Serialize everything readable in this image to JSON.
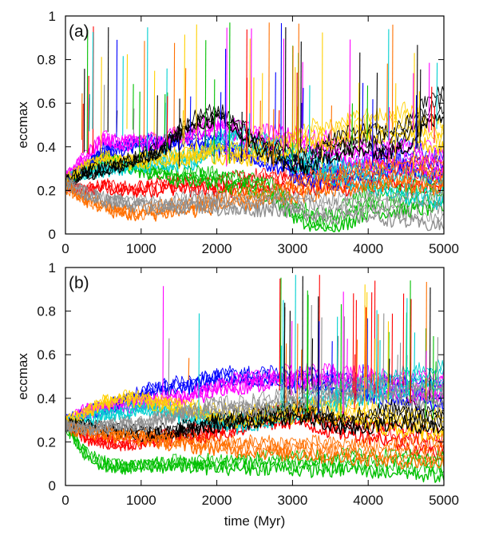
{
  "chart_data": [
    {
      "type": "line",
      "panel_label": "(a)",
      "xlabel": "",
      "ylabel": "eccmax",
      "xlim": [
        0,
        5000
      ],
      "ylim": [
        0,
        1
      ],
      "xticks": [
        "0",
        "1000",
        "2000",
        "3000",
        "4000",
        "5000"
      ],
      "yticks": [
        "0",
        "0.2",
        "0.4",
        "0.6",
        "0.8",
        "1"
      ],
      "grid": false,
      "legend": "none",
      "palette": [
        "#ff0000",
        "#00c000",
        "#0000ff",
        "#ff00ff",
        "#00d0d0",
        "#ffd000",
        "#000000",
        "#ff7000",
        "#909090"
      ],
      "series": [
        {
          "color": "#ff0000",
          "x": [
            0,
            250,
            500,
            750,
            1000,
            1250,
            1500,
            1750,
            2000,
            2250,
            2500,
            2750,
            3000,
            3250,
            3500,
            3750,
            4000,
            4250,
            4500,
            4750,
            5000
          ],
          "y": [
            0.23,
            0.2,
            0.22,
            0.2,
            0.21,
            0.22,
            0.23,
            0.22,
            0.22,
            0.23,
            0.24,
            0.24,
            0.25,
            0.24,
            0.26,
            0.25,
            0.27,
            0.27,
            0.26,
            0.27,
            0.26
          ]
        },
        {
          "color": "#00c000",
          "x": [
            0,
            250,
            500,
            750,
            1000,
            1250,
            1500,
            1750,
            2000,
            2250,
            2500,
            2750,
            3000,
            3250,
            3500,
            3750,
            4000,
            4250,
            4500,
            4750,
            5000
          ],
          "y": [
            0.25,
            0.3,
            0.35,
            0.32,
            0.3,
            0.28,
            0.26,
            0.27,
            0.25,
            0.24,
            0.22,
            0.2,
            0.12,
            0.06,
            0.05,
            0.1,
            0.15,
            0.15,
            0.16,
            0.17,
            0.18
          ]
        },
        {
          "color": "#0000ff",
          "x": [
            0,
            250,
            500,
            750,
            1000,
            1250,
            1500,
            1750,
            2000,
            2250,
            2500,
            2750,
            3000,
            3250,
            3500,
            3750,
            4000,
            4250,
            4500,
            4750,
            5000
          ],
          "y": [
            0.24,
            0.3,
            0.38,
            0.4,
            0.42,
            0.41,
            0.43,
            0.42,
            0.41,
            0.38,
            0.36,
            0.35,
            0.3,
            0.28,
            0.27,
            0.28,
            0.3,
            0.34,
            0.36,
            0.32,
            0.3
          ]
        },
        {
          "color": "#ff00ff",
          "x": [
            0,
            250,
            500,
            750,
            1000,
            1250,
            1500,
            1750,
            2000,
            2250,
            2500,
            2750,
            3000,
            3250,
            3500,
            3750,
            4000,
            4250,
            4500,
            4750,
            5000
          ],
          "y": [
            0.25,
            0.35,
            0.44,
            0.42,
            0.43,
            0.42,
            0.45,
            0.48,
            0.5,
            0.47,
            0.45,
            0.44,
            0.43,
            0.41,
            0.4,
            0.38,
            0.37,
            0.36,
            0.35,
            0.34,
            0.33
          ]
        },
        {
          "color": "#00d0d0",
          "x": [
            0,
            250,
            500,
            750,
            1000,
            1250,
            1500,
            1750,
            2000,
            2250,
            2500,
            2750,
            3000,
            3250,
            3500,
            3750,
            4000,
            4250,
            4500,
            4750,
            5000
          ],
          "y": [
            0.25,
            0.28,
            0.3,
            0.31,
            0.32,
            0.33,
            0.34,
            0.35,
            0.42,
            0.45,
            0.42,
            0.4,
            0.35,
            0.33,
            0.3,
            0.28,
            0.26,
            0.24,
            0.22,
            0.21,
            0.2
          ]
        },
        {
          "color": "#ffd000",
          "x": [
            0,
            250,
            500,
            750,
            1000,
            1250,
            1500,
            1750,
            2000,
            2250,
            2500,
            2750,
            3000,
            3250,
            3500,
            3750,
            4000,
            4250,
            4500,
            4750,
            5000
          ],
          "y": [
            0.24,
            0.3,
            0.35,
            0.33,
            0.34,
            0.36,
            0.35,
            0.37,
            0.38,
            0.36,
            0.37,
            0.38,
            0.42,
            0.46,
            0.45,
            0.48,
            0.5,
            0.49,
            0.52,
            0.47,
            0.45
          ]
        },
        {
          "color": "#000000",
          "x": [
            0,
            250,
            500,
            750,
            1000,
            1250,
            1500,
            1750,
            2000,
            2250,
            2500,
            2750,
            3000,
            3250,
            3500,
            3750,
            4000,
            4250,
            4500,
            4750,
            5000
          ],
          "y": [
            0.24,
            0.28,
            0.3,
            0.32,
            0.35,
            0.38,
            0.48,
            0.52,
            0.55,
            0.5,
            0.42,
            0.38,
            0.33,
            0.34,
            0.4,
            0.42,
            0.43,
            0.42,
            0.45,
            0.55,
            0.6
          ]
        },
        {
          "color": "#ff7000",
          "x": [
            0,
            250,
            500,
            750,
            1000,
            1250,
            1500,
            1750,
            2000,
            2250,
            2500,
            2750,
            3000,
            3250,
            3500,
            3750,
            4000,
            4250,
            4500,
            4750,
            5000
          ],
          "y": [
            0.22,
            0.16,
            0.13,
            0.1,
            0.1,
            0.11,
            0.12,
            0.13,
            0.15,
            0.16,
            0.17,
            0.18,
            0.2,
            0.22,
            0.24,
            0.25,
            0.27,
            0.28,
            0.28,
            0.27,
            0.27
          ]
        },
        {
          "color": "#909090",
          "x": [
            0,
            250,
            500,
            750,
            1000,
            1250,
            1500,
            1750,
            2000,
            2250,
            2500,
            2750,
            3000,
            3250,
            3500,
            3750,
            4000,
            4250,
            4500,
            4750,
            5000
          ],
          "y": [
            0.23,
            0.19,
            0.16,
            0.15,
            0.14,
            0.13,
            0.14,
            0.15,
            0.14,
            0.13,
            0.14,
            0.15,
            0.14,
            0.13,
            0.12,
            0.12,
            0.13,
            0.12,
            0.11,
            0.1,
            0.1
          ]
        }
      ]
    },
    {
      "type": "line",
      "panel_label": "(b)",
      "xlabel": "time (Myr)",
      "ylabel": "eccmax",
      "xlim": [
        0,
        5000
      ],
      "ylim": [
        0,
        1
      ],
      "xticks": [
        "0",
        "1000",
        "2000",
        "3000",
        "4000",
        "5000"
      ],
      "yticks": [
        "0",
        "0.2",
        "0.4",
        "0.6",
        "0.8",
        "1"
      ],
      "grid": false,
      "legend": "none",
      "palette": [
        "#ff0000",
        "#00c000",
        "#0000ff",
        "#ff00ff",
        "#00d0d0",
        "#ffd000",
        "#000000",
        "#ff7000",
        "#909090"
      ],
      "series": [
        {
          "color": "#ff0000",
          "x": [
            0,
            250,
            500,
            750,
            1000,
            1250,
            1500,
            1750,
            2000,
            2250,
            2500,
            2750,
            3000,
            3250,
            3500,
            3750,
            4000,
            4250,
            4500,
            4750,
            5000
          ],
          "y": [
            0.28,
            0.22,
            0.2,
            0.19,
            0.2,
            0.22,
            0.23,
            0.24,
            0.25,
            0.27,
            0.3,
            0.31,
            0.32,
            0.3,
            0.28,
            0.27,
            0.26,
            0.25,
            0.22,
            0.2,
            0.18
          ]
        },
        {
          "color": "#00c000",
          "x": [
            0,
            250,
            500,
            750,
            1000,
            1250,
            1500,
            1750,
            2000,
            2250,
            2500,
            2750,
            3000,
            3250,
            3500,
            3750,
            4000,
            4250,
            4500,
            4750,
            5000
          ],
          "y": [
            0.27,
            0.15,
            0.1,
            0.09,
            0.09,
            0.1,
            0.1,
            0.1,
            0.1,
            0.1,
            0.1,
            0.11,
            0.1,
            0.1,
            0.1,
            0.11,
            0.1,
            0.1,
            0.1,
            0.09,
            0.09
          ]
        },
        {
          "color": "#0000ff",
          "x": [
            0,
            250,
            500,
            750,
            1000,
            1250,
            1500,
            1750,
            2000,
            2250,
            2500,
            2750,
            3000,
            3250,
            3500,
            3750,
            4000,
            4250,
            4500,
            4750,
            5000
          ],
          "y": [
            0.29,
            0.33,
            0.36,
            0.38,
            0.42,
            0.45,
            0.46,
            0.47,
            0.49,
            0.5,
            0.49,
            0.5,
            0.48,
            0.49,
            0.47,
            0.46,
            0.45,
            0.44,
            0.43,
            0.42,
            0.42
          ]
        },
        {
          "color": "#ff00ff",
          "x": [
            0,
            250,
            500,
            750,
            1000,
            1250,
            1500,
            1750,
            2000,
            2250,
            2500,
            2750,
            3000,
            3250,
            3500,
            3750,
            4000,
            4250,
            4500,
            4750,
            5000
          ],
          "y": [
            0.28,
            0.34,
            0.36,
            0.37,
            0.38,
            0.39,
            0.4,
            0.42,
            0.45,
            0.47,
            0.48,
            0.49,
            0.5,
            0.5,
            0.5,
            0.49,
            0.48,
            0.47,
            0.45,
            0.45,
            0.46
          ]
        },
        {
          "color": "#00d0d0",
          "x": [
            0,
            250,
            500,
            750,
            1000,
            1250,
            1500,
            1750,
            2000,
            2250,
            2500,
            2750,
            3000,
            3250,
            3500,
            3750,
            4000,
            4250,
            4500,
            4750,
            5000
          ],
          "y": [
            0.28,
            0.3,
            0.32,
            0.34,
            0.35,
            0.35,
            0.33,
            0.32,
            0.3,
            0.29,
            0.3,
            0.32,
            0.35,
            0.38,
            0.4,
            0.42,
            0.44,
            0.46,
            0.48,
            0.5,
            0.5
          ]
        },
        {
          "color": "#ffd000",
          "x": [
            0,
            250,
            500,
            750,
            1000,
            1250,
            1500,
            1750,
            2000,
            2250,
            2500,
            2750,
            3000,
            3250,
            3500,
            3750,
            4000,
            4250,
            4500,
            4750,
            5000
          ],
          "y": [
            0.29,
            0.33,
            0.38,
            0.4,
            0.4,
            0.38,
            0.36,
            0.34,
            0.33,
            0.32,
            0.32,
            0.33,
            0.34,
            0.35,
            0.34,
            0.33,
            0.32,
            0.3,
            0.29,
            0.28,
            0.28
          ]
        },
        {
          "color": "#000000",
          "x": [
            0,
            250,
            500,
            750,
            1000,
            1250,
            1500,
            1750,
            2000,
            2250,
            2500,
            2750,
            3000,
            3250,
            3500,
            3750,
            4000,
            4250,
            4500,
            4750,
            5000
          ],
          "y": [
            0.28,
            0.27,
            0.26,
            0.25,
            0.24,
            0.24,
            0.25,
            0.27,
            0.29,
            0.3,
            0.31,
            0.33,
            0.34,
            0.33,
            0.3,
            0.29,
            0.3,
            0.32,
            0.33,
            0.31,
            0.3
          ]
        },
        {
          "color": "#ff7000",
          "x": [
            0,
            250,
            500,
            750,
            1000,
            1250,
            1500,
            1750,
            2000,
            2250,
            2500,
            2750,
            3000,
            3250,
            3500,
            3750,
            4000,
            4250,
            4500,
            4750,
            5000
          ],
          "y": [
            0.27,
            0.25,
            0.24,
            0.23,
            0.22,
            0.21,
            0.2,
            0.19,
            0.19,
            0.18,
            0.18,
            0.17,
            0.17,
            0.17,
            0.16,
            0.16,
            0.16,
            0.15,
            0.15,
            0.15,
            0.15
          ]
        },
        {
          "color": "#909090",
          "x": [
            0,
            250,
            500,
            750,
            1000,
            1250,
            1500,
            1750,
            2000,
            2250,
            2500,
            2750,
            3000,
            3250,
            3500,
            3750,
            4000,
            4250,
            4500,
            4750,
            5000
          ],
          "y": [
            0.28,
            0.26,
            0.27,
            0.28,
            0.28,
            0.3,
            0.33,
            0.35,
            0.36,
            0.36,
            0.37,
            0.38,
            0.4,
            0.42,
            0.43,
            0.44,
            0.45,
            0.44,
            0.43,
            0.42,
            0.41
          ]
        }
      ]
    }
  ]
}
